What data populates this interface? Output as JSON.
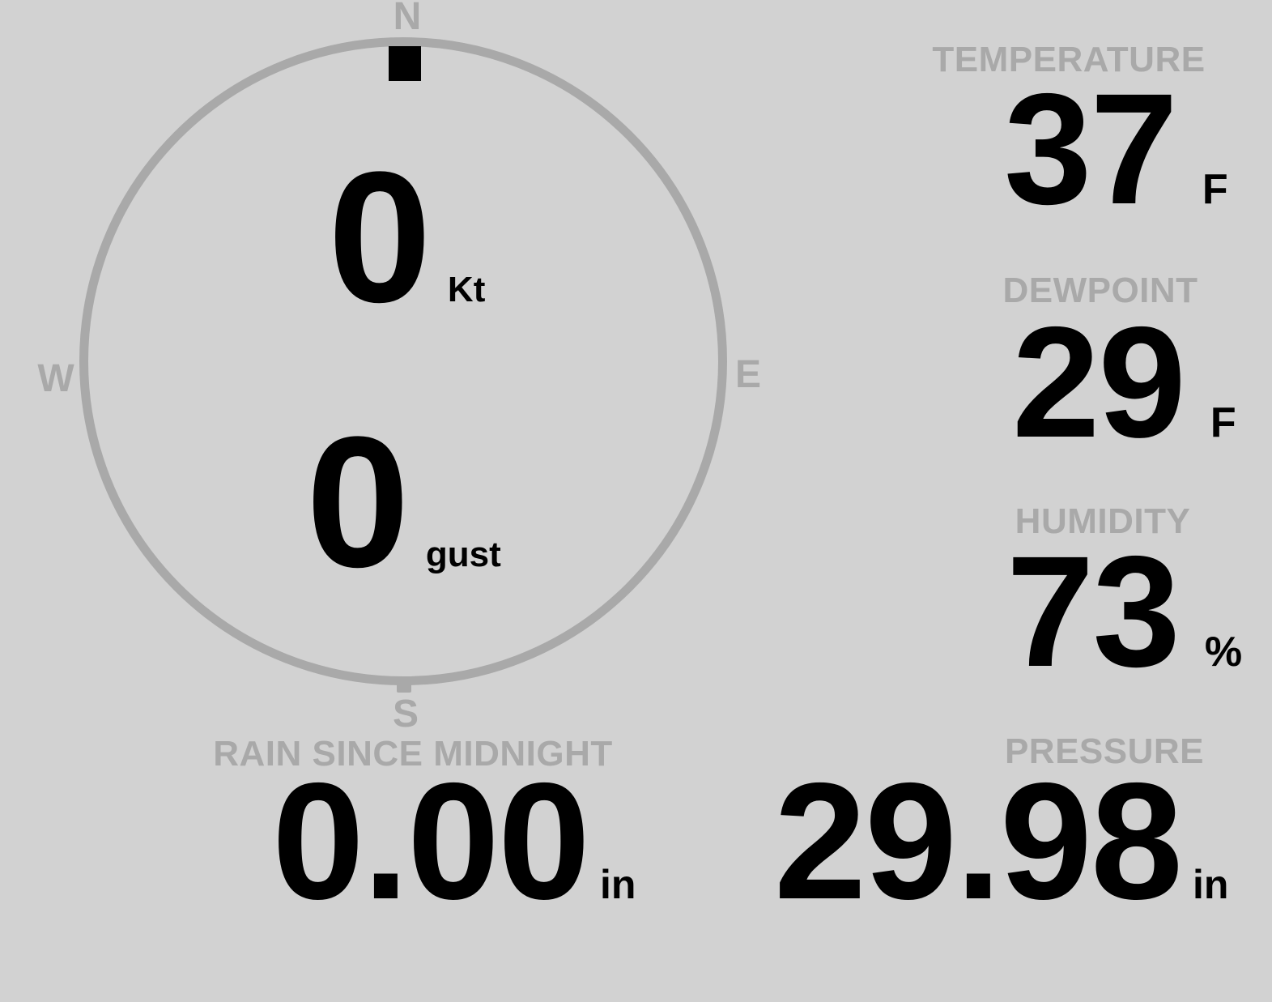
{
  "colors": {
    "background": "#d2d2d2",
    "muted_gray": "#a9a9a9",
    "value_black": "#000000"
  },
  "wind_compass": {
    "direction_marker_position": "north",
    "directions": {
      "north": "N",
      "east": "E",
      "south": "S",
      "west": "W"
    },
    "speed": {
      "value": "0",
      "unit": "Kt"
    },
    "gust": {
      "value": "0",
      "unit": "gust"
    }
  },
  "metrics": {
    "temperature": {
      "label": "TEMPERATURE",
      "value": "37",
      "unit": "F"
    },
    "dewpoint": {
      "label": "DEWPOINT",
      "value": "29",
      "unit": "F"
    },
    "humidity": {
      "label": "HUMIDITY",
      "value": "73",
      "unit": "%"
    },
    "rain_since_midnight": {
      "label": "RAIN SINCE MIDNIGHT",
      "value": "0.00",
      "unit": "in"
    },
    "pressure": {
      "label": "PRESSURE",
      "value": "29.98",
      "unit": "in"
    }
  }
}
